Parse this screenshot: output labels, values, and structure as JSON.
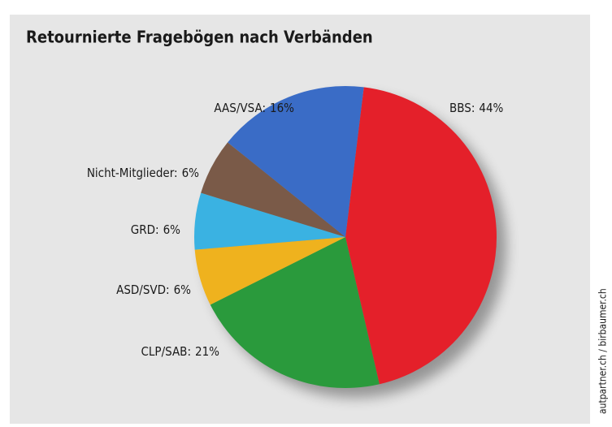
{
  "chart_data": {
    "type": "pie",
    "title": "Retournierte Fragebögen nach Verbänden",
    "categories": [
      "BBS:",
      "CLP/SAB:",
      "ASD/SVD:",
      "GRD:",
      "Nicht-Mitglieder:",
      "AAS/VSA:"
    ],
    "values": [
      44,
      21,
      6,
      6,
      6,
      16
    ],
    "value_labels": [
      "44%",
      "21%",
      "6%",
      "6%",
      "6%",
      "16%"
    ],
    "colors": [
      "#e4202a",
      "#2a9a3c",
      "#efb21e",
      "#3ab2e2",
      "#7a5a48",
      "#3a6cc6"
    ],
    "credit": "autpartner.ch / birbaumer.ch"
  }
}
